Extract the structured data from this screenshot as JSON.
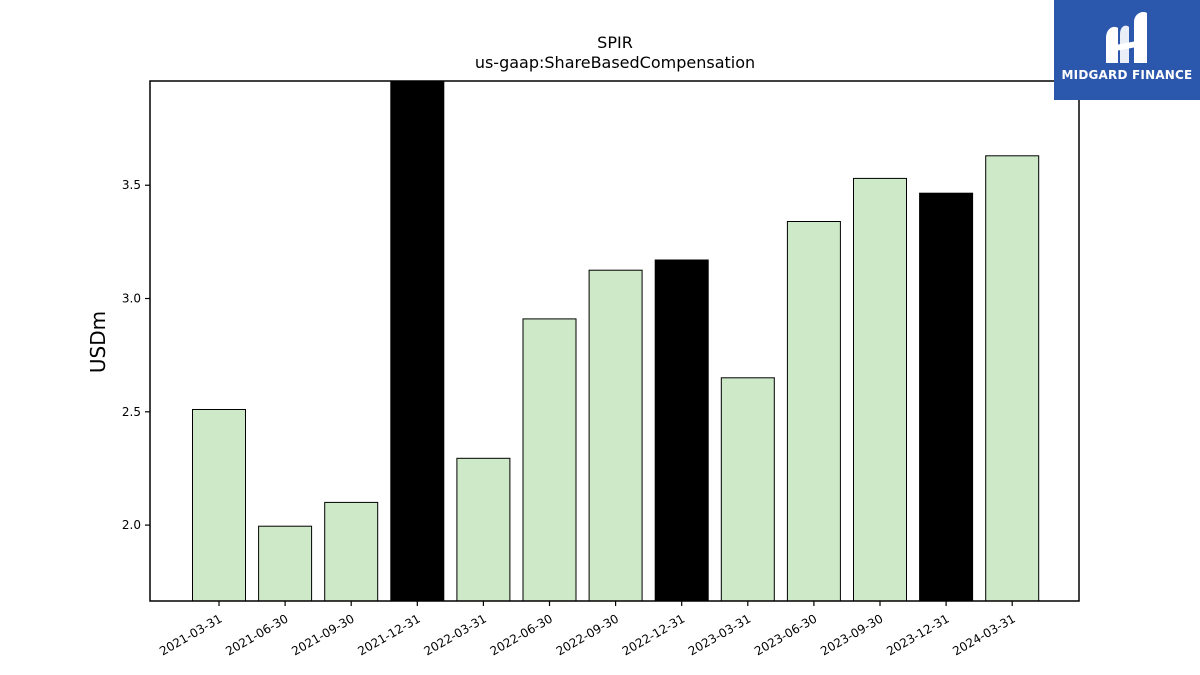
{
  "brand": {
    "name": "MIDGARD FINANCE",
    "logo_icon": "midgard-logo-icon",
    "background": "#2b58ad"
  },
  "chart_data": {
    "type": "bar",
    "title": "SPIR",
    "subtitle": "us-gaap:ShareBasedCompensation",
    "xlabel": "",
    "ylabel": "USDm",
    "ylim": [
      1.665,
      3.96
    ],
    "yticks": [
      "2.0",
      "2.5",
      "3.0",
      "3.5"
    ],
    "categories": [
      "2021-03-31",
      "2021-06-30",
      "2021-09-30",
      "2021-12-31",
      "2022-03-31",
      "2022-06-30",
      "2022-09-30",
      "2022-12-31",
      "2023-03-31",
      "2023-06-30",
      "2023-09-30",
      "2023-12-31",
      "2024-03-31"
    ],
    "values": [
      2.51,
      1.995,
      2.1,
      3.96,
      2.295,
      2.91,
      3.125,
      3.17,
      2.65,
      3.34,
      3.53,
      3.465,
      3.63
    ],
    "highlight": [
      false,
      false,
      false,
      true,
      false,
      false,
      false,
      true,
      false,
      false,
      false,
      true,
      false
    ],
    "colors": {
      "normal": "#cde9c7",
      "highlight": "#000000",
      "edge": "#000000"
    },
    "grid": false,
    "legend": "none"
  }
}
